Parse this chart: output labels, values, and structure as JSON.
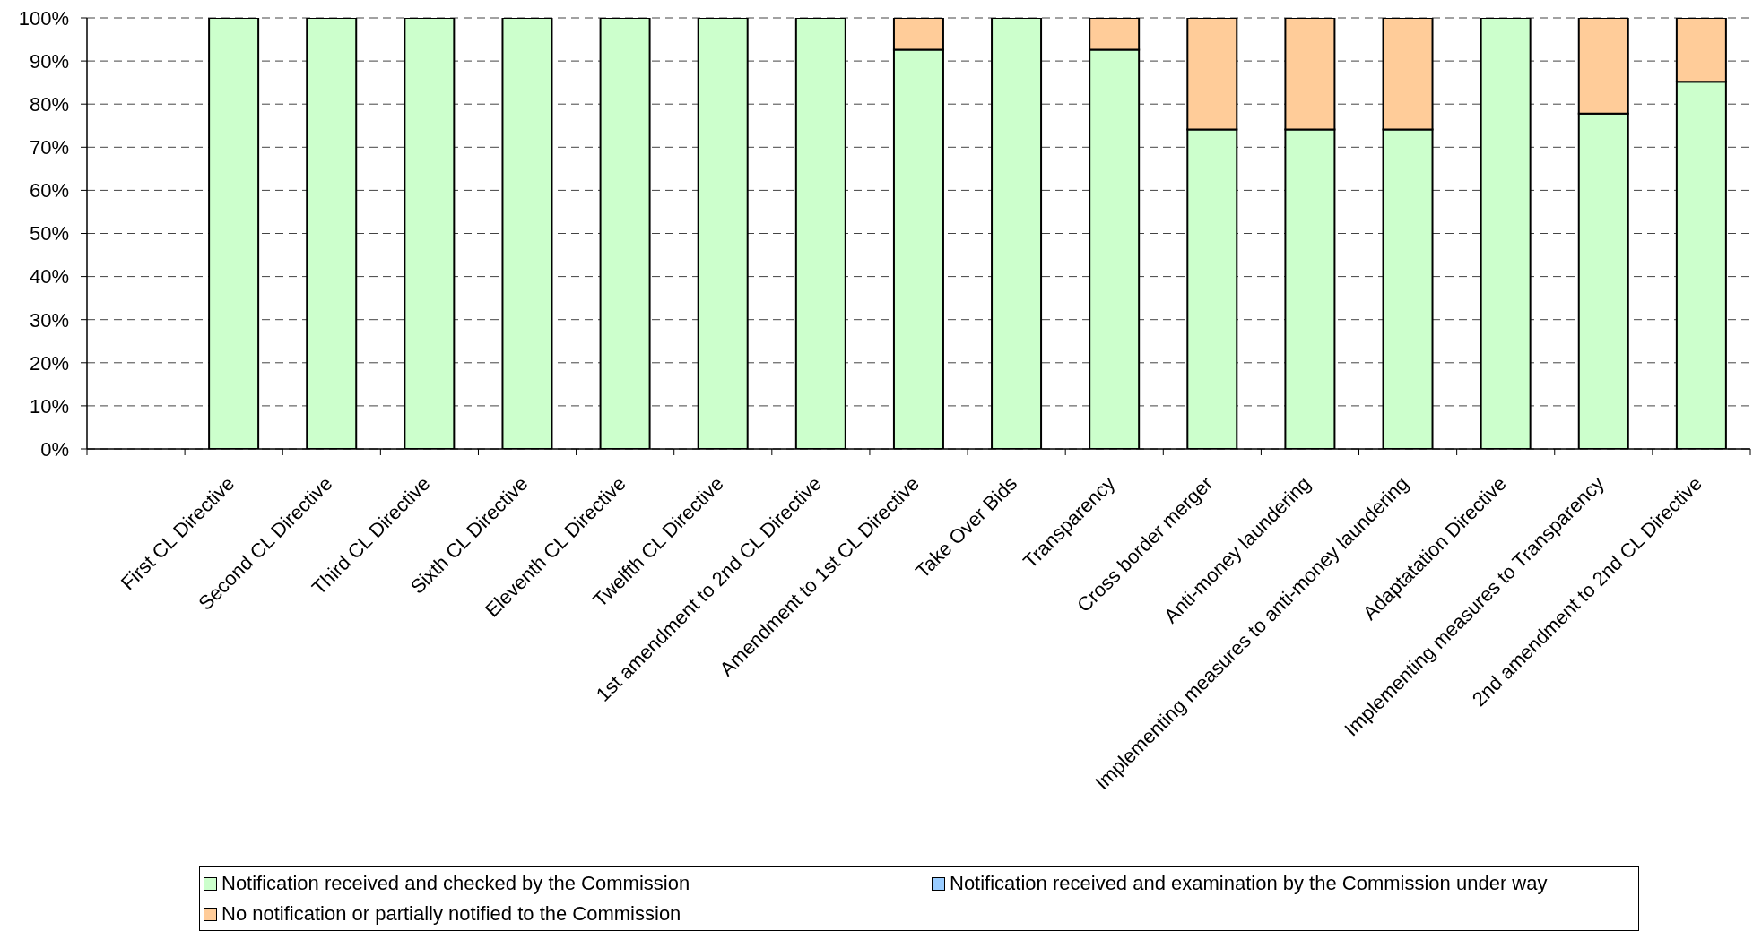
{
  "chart_data": {
    "type": "bar",
    "stacked": true,
    "categories": [
      null,
      "First CL Directive",
      "Second CL Directive",
      "Third CL Directive",
      "Sixth CL Directive",
      "Eleventh CL Directive",
      "Twelfth CL Directive",
      "1st amendment to 2nd CL Directive",
      "Amendment to 1st CL Directive",
      "Take Over Bids",
      "Transparency",
      "Cross border merger",
      "Anti-money laundering",
      "Implementing measures to anti-money laundering",
      "Adaptatation Directive",
      "Implementing measures to Transparency",
      "2nd amendment to 2nd CL Directive"
    ],
    "series": [
      {
        "name": "Notification received and checked by the Commission",
        "color": "#ccffcc",
        "values": [
          null,
          100,
          100,
          100,
          100,
          100,
          100,
          100,
          92.6,
          100,
          92.6,
          74.1,
          74.1,
          74.1,
          100,
          77.8,
          85.2
        ]
      },
      {
        "name": "Notification received and examination by the Commission under way",
        "color": "#99ccff",
        "values": [
          null,
          0,
          0,
          0,
          0,
          0,
          0,
          0,
          0,
          0,
          0,
          0,
          0,
          0,
          0,
          0,
          0
        ]
      },
      {
        "name": "No notification or partially notified to the Commission",
        "color": "#ffcc99",
        "values": [
          null,
          0,
          0,
          0,
          0,
          0,
          0,
          0,
          7.4,
          0,
          7.4,
          25.9,
          25.9,
          25.9,
          0,
          22.2,
          14.8
        ]
      }
    ],
    "ylim": [
      0,
      100
    ],
    "yticks": [
      {
        "value": 0,
        "label": "0%"
      },
      {
        "value": 10,
        "label": "10%"
      },
      {
        "value": 20,
        "label": "20%"
      },
      {
        "value": 30,
        "label": "30%"
      },
      {
        "value": 40,
        "label": "40%"
      },
      {
        "value": 50,
        "label": "50%"
      },
      {
        "value": 60,
        "label": "60%"
      },
      {
        "value": 70,
        "label": "70%"
      },
      {
        "value": 80,
        "label": "80%"
      },
      {
        "value": 90,
        "label": "90%"
      },
      {
        "value": 100,
        "label": "100%"
      }
    ],
    "grid": "y",
    "legend": "bottom"
  }
}
